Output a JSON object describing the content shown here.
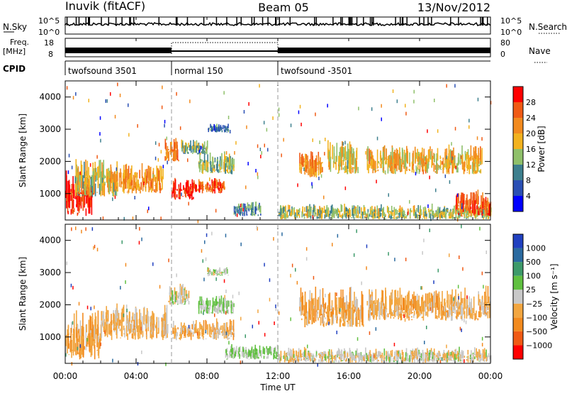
{
  "header": {
    "station": "Inuvik (fitACF)",
    "beam": "Beam 05",
    "date": "13/Nov/2012"
  },
  "panels": {
    "nsky": {
      "left_label": "N.Sky",
      "right_label": "N.Search",
      "ticks_left": [
        "10^5",
        "10^0"
      ],
      "ticks_right": [
        "10^5",
        "10^0"
      ]
    },
    "freq": {
      "left_label": "Freq.",
      "left_unit": "[MHz]",
      "right_label": "Nave",
      "ticks_left": [
        "18",
        "8"
      ],
      "ticks_right": [
        "80",
        "0"
      ]
    },
    "cpid": {
      "label": "CPID",
      "segments": [
        {
          "start_hour": 0,
          "end_hour": 6,
          "name": "twofsound 3501"
        },
        {
          "start_hour": 6,
          "end_hour": 12,
          "name": "normal 150"
        },
        {
          "start_hour": 12,
          "end_hour": 24,
          "name": "twofsound -3501"
        }
      ]
    }
  },
  "chart_data": [
    {
      "type": "heatmap",
      "title": "",
      "ylabel": "Slant Range [km]",
      "xlabel": "Time UT",
      "ylim": [
        180,
        4500
      ],
      "y_ticks": [
        "4000",
        "3000",
        "2000",
        "1000"
      ],
      "y_tick_values": [
        4000,
        3000,
        2000,
        1000
      ],
      "colorbar_label": "Power [dB]",
      "colorbar_ticks": [
        "28",
        "24",
        "20",
        "16",
        "12",
        "8",
        "4"
      ],
      "colorbar_colors": [
        "#0000ff",
        "#2a4fb4",
        "#3d7f8e",
        "#8fc06a",
        "#f2b21e",
        "#f28a1e",
        "#f05a14",
        "#ff0000"
      ],
      "colorbar_range": [
        0,
        30
      ],
      "blobs": [
        {
          "t0": 0.0,
          "t1": 1.6,
          "r0": 300,
          "r1": 1800,
          "v": 28
        },
        {
          "t0": 0.5,
          "t1": 3.0,
          "r0": 900,
          "r1": 2200,
          "v": 15
        },
        {
          "t0": 2.5,
          "t1": 5.5,
          "r0": 1000,
          "r1": 2000,
          "v": 20
        },
        {
          "t0": 5.6,
          "t1": 6.4,
          "r0": 2000,
          "r1": 2800,
          "v": 22
        },
        {
          "t0": 6.0,
          "t1": 7.2,
          "r0": 800,
          "r1": 1500,
          "v": 28
        },
        {
          "t0": 7.0,
          "t1": 9.0,
          "r0": 1000,
          "r1": 1500,
          "v": 24
        },
        {
          "t0": 7.5,
          "t1": 9.5,
          "r0": 1600,
          "r1": 2400,
          "v": 14
        },
        {
          "t0": 6.5,
          "t1": 8.0,
          "r0": 2200,
          "r1": 2700,
          "v": 12
        },
        {
          "t0": 8.0,
          "t1": 9.2,
          "r0": 2900,
          "r1": 3200,
          "v": 8
        },
        {
          "t0": 9.5,
          "t1": 11.0,
          "r0": 300,
          "r1": 800,
          "v": 10
        },
        {
          "t0": 13.2,
          "t1": 14.5,
          "r0": 1500,
          "r1": 2500,
          "v": 20
        },
        {
          "t0": 14.8,
          "t1": 16.5,
          "r0": 1600,
          "r1": 2700,
          "v": 16
        },
        {
          "t0": 17.0,
          "t1": 23.5,
          "r0": 1600,
          "r1": 2600,
          "v": 18
        },
        {
          "t0": 12.0,
          "t1": 24.0,
          "r0": 200,
          "r1": 700,
          "v": 14
        },
        {
          "t0": 22.0,
          "t1": 24.0,
          "r0": 300,
          "r1": 1200,
          "v": 24
        }
      ]
    },
    {
      "type": "heatmap",
      "title": "",
      "ylabel": "Slant Range [km]",
      "xlabel": "Time UT",
      "ylim": [
        180,
        4500
      ],
      "y_ticks": [
        "4000",
        "3000",
        "2000",
        "1000"
      ],
      "y_tick_values": [
        4000,
        3000,
        2000,
        1000
      ],
      "colorbar_label": "Velocity [m s⁻¹]",
      "colorbar_ticks": [
        "1000",
        "500",
        "100",
        "25",
        "−25",
        "−100",
        "−500",
        "−1000"
      ],
      "colorbar_colors": [
        "#ff0000",
        "#f05a14",
        "#f28a1e",
        "#f2a640",
        "#c8c8c8",
        "#60c040",
        "#3d9a6a",
        "#2a6aa0",
        "#2040c0"
      ],
      "colorbar_range": [
        -1200,
        1200
      ],
      "blobs": [
        {
          "t0": 0.0,
          "t1": 2.0,
          "r0": 300,
          "r1": 2000,
          "v": -300
        },
        {
          "t0": 2.0,
          "t1": 5.8,
          "r0": 900,
          "r1": 2100,
          "v": -200
        },
        {
          "t0": 5.8,
          "t1": 7.0,
          "r0": 2000,
          "r1": 2700,
          "v": 0
        },
        {
          "t0": 6.0,
          "t1": 9.5,
          "r0": 900,
          "r1": 1600,
          "v": -250
        },
        {
          "t0": 7.5,
          "t1": 9.5,
          "r0": 1700,
          "r1": 2300,
          "v": 150
        },
        {
          "t0": 8.0,
          "t1": 9.2,
          "r0": 2900,
          "r1": 3200,
          "v": 0
        },
        {
          "t0": 9.0,
          "t1": 12.0,
          "r0": 300,
          "r1": 800,
          "v": 150
        },
        {
          "t0": 13.2,
          "t1": 16.8,
          "r0": 1300,
          "r1": 2600,
          "v": -300
        },
        {
          "t0": 17.0,
          "t1": 24.0,
          "r0": 1500,
          "r1": 2600,
          "v": -250
        },
        {
          "t0": 12.0,
          "t1": 24.0,
          "r0": 200,
          "r1": 700,
          "v": -60
        }
      ]
    }
  ],
  "time_axis": {
    "label": "Time UT",
    "ticks": [
      "00:00",
      "04:00",
      "08:00",
      "12:00",
      "16:00",
      "20:00",
      "00:00"
    ],
    "tick_hours": [
      0,
      4,
      8,
      12,
      16,
      20,
      24
    ]
  }
}
